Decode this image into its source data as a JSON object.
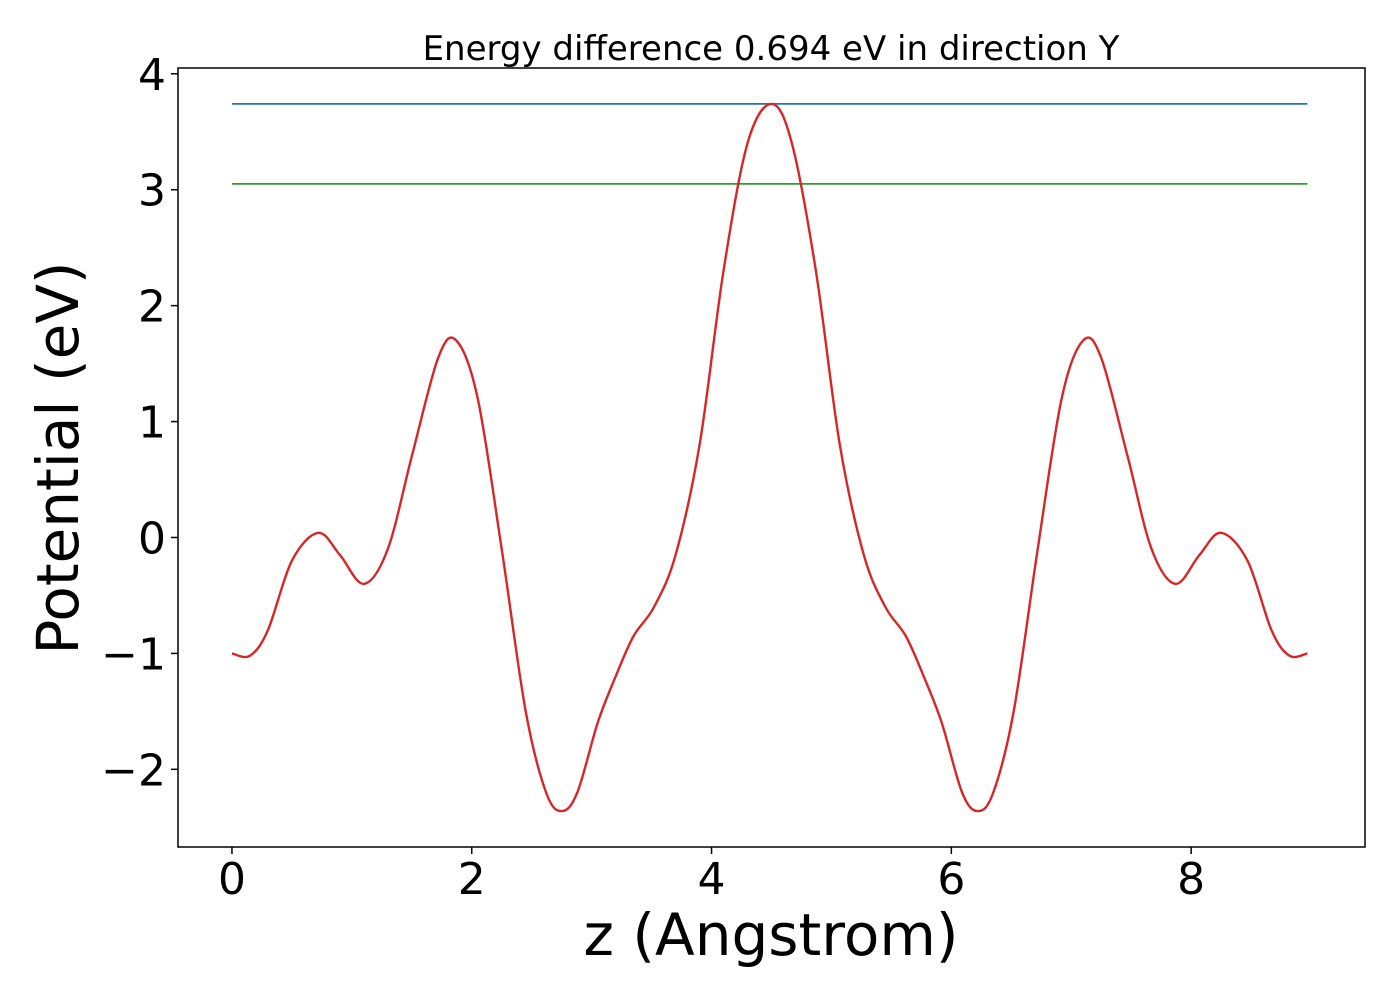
{
  "chart_data": {
    "type": "line",
    "title": "Energy difference 0.694 eV in direction Y",
    "xlabel": "z (Angstrom)",
    "ylabel": "Potential (eV)",
    "xlim": [
      -0.45,
      9.45
    ],
    "ylim": [
      -2.67,
      4.05
    ],
    "x_ticks": [
      0,
      2,
      4,
      6,
      8
    ],
    "x_tick_labels": [
      "0",
      "2",
      "4",
      "6",
      "8"
    ],
    "y_ticks": [
      -2,
      -1,
      0,
      1,
      2,
      3,
      4
    ],
    "y_tick_labels": [
      "−2",
      "−1",
      "0",
      "1",
      "2",
      "3",
      "4"
    ],
    "grid": false,
    "legend": "none",
    "series": [
      {
        "color": "#1f77b4",
        "x": [
          0,
          8.97
        ],
        "y": [
          3.74,
          3.74
        ]
      },
      {
        "color": "#2ca02c",
        "x": [
          0,
          8.97
        ],
        "y": [
          3.05,
          3.05
        ]
      },
      {
        "color": "#d62728",
        "x": [
          0,
          0.15,
          0.3,
          0.5,
          0.72,
          0.9,
          1.1,
          1.3,
          1.5,
          1.72,
          1.87,
          2.05,
          2.25,
          2.45,
          2.62,
          2.75,
          2.88,
          3.05,
          3.2,
          3.35,
          3.52,
          3.7,
          3.9,
          4.1,
          4.3,
          4.5,
          4.67,
          4.87,
          5.07,
          5.27,
          5.45,
          5.62,
          5.77,
          5.92,
          6.09,
          6.22,
          6.35,
          6.52,
          6.72,
          6.92,
          7.1,
          7.25,
          7.47,
          7.67,
          7.87,
          8.07,
          8.25,
          8.47,
          8.67,
          8.82,
          8.97
        ],
        "y": [
          -1.0,
          -1.02,
          -0.8,
          -0.2,
          0.04,
          -0.15,
          -0.4,
          -0.1,
          0.7,
          1.55,
          1.7,
          1.2,
          -0.1,
          -1.5,
          -2.2,
          -2.36,
          -2.2,
          -1.6,
          -1.2,
          -0.85,
          -0.6,
          -0.15,
          0.8,
          2.3,
          3.4,
          3.74,
          3.4,
          2.3,
          0.8,
          -0.15,
          -0.6,
          -0.85,
          -1.2,
          -1.6,
          -2.2,
          -2.36,
          -2.2,
          -1.5,
          -0.1,
          1.2,
          1.7,
          1.55,
          0.7,
          -0.1,
          -0.4,
          -0.15,
          0.04,
          -0.2,
          -0.8,
          -1.02,
          -1.0
        ]
      }
    ]
  }
}
